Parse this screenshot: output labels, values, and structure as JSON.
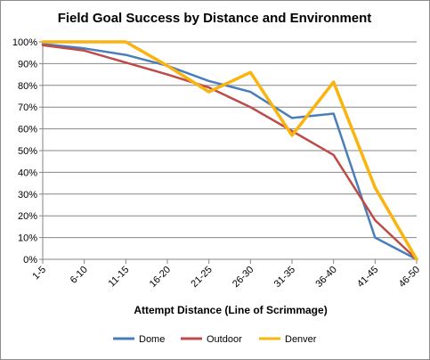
{
  "chart_data": {
    "type": "line",
    "title": "Field Goal Success by Distance and Environment",
    "xlabel": "Attempt Distance (Line of Scrimmage)",
    "ylabel": "",
    "categories": [
      "1-5",
      "6-10",
      "11-15",
      "16-20",
      "21-25",
      "26-30",
      "31-35",
      "36-40",
      "41-45",
      "46-50"
    ],
    "ylim": [
      0,
      100
    ],
    "yticks": [
      "0%",
      "10%",
      "20%",
      "30%",
      "40%",
      "50%",
      "60%",
      "70%",
      "80%",
      "90%",
      "100%"
    ],
    "grid": true,
    "legend_position": "bottom",
    "series": [
      {
        "name": "Dome",
        "color": "#4a7ebb",
        "values": [
          99,
          97,
          94,
          89,
          82,
          77,
          65,
          67,
          10,
          0
        ]
      },
      {
        "name": "Outdoor",
        "color": "#be4b48",
        "values": [
          98.5,
          96,
          90.5,
          85,
          79,
          70,
          59,
          48,
          18,
          0
        ]
      },
      {
        "name": "Denver",
        "color": "#f9b410",
        "values": [
          100,
          100,
          100,
          89,
          77,
          86,
          57,
          81.5,
          33,
          0
        ]
      }
    ]
  }
}
